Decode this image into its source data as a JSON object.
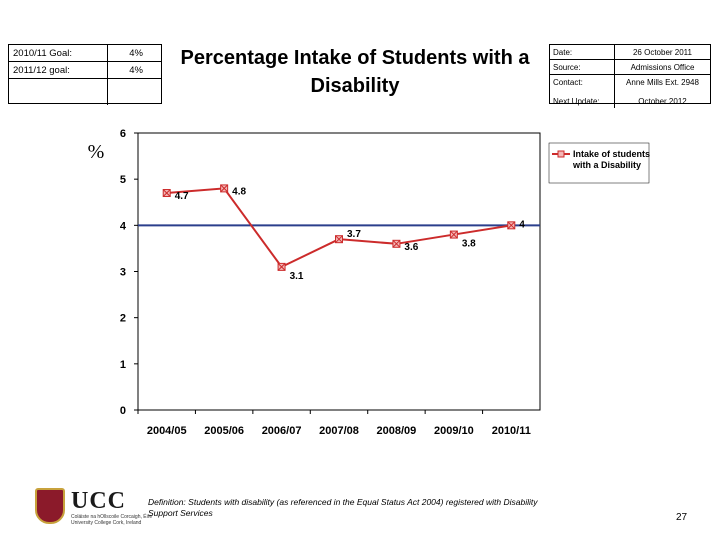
{
  "goals": [
    {
      "label": "2010/11 Goal:",
      "value": "4%"
    },
    {
      "label": "2011/12 goal:",
      "value": "4%"
    }
  ],
  "title": "Percentage Intake of Students with a Disability",
  "info": [
    {
      "key": "Date:",
      "value": "26 October 2011"
    },
    {
      "key": "Source:",
      "value": "Admissions Office"
    },
    {
      "key": "Contact:",
      "value": "Anne Mills Ext. 2948"
    },
    {
      "key": "Next Update:",
      "value": "October 2012"
    }
  ],
  "chart_data": {
    "type": "line",
    "categories": [
      "2004/05",
      "2005/06",
      "2006/07",
      "2007/08",
      "2008/09",
      "2009/10",
      "2010/11"
    ],
    "series": [
      {
        "name": "Intake of students with a Disability",
        "values": [
          4.7,
          4.8,
          3.1,
          3.7,
          3.6,
          3.8,
          4.0
        ],
        "color": "#cc2b2b"
      }
    ],
    "data_labels": [
      "4.7",
      "4.8",
      "3.1",
      "3.7",
      "3.6",
      "3.8",
      "4"
    ],
    "reference_line": {
      "value": 4,
      "color": "#2b3f8c"
    },
    "ylabel": "%",
    "ylim": [
      0,
      6
    ],
    "yticks": [
      0,
      1,
      2,
      3,
      4,
      5,
      6
    ],
    "legend_position": "top-right",
    "grid": false
  },
  "logo": {
    "name": "UCC",
    "subtitle_line1": "Coláiste na hOllscoile Corcaigh, Éire",
    "subtitle_line2": "University College Cork, Ireland"
  },
  "definition": "Definition: Students with disability (as referenced in the Equal Status Act 2004) registered with Disability Support Services",
  "page_number": "27"
}
